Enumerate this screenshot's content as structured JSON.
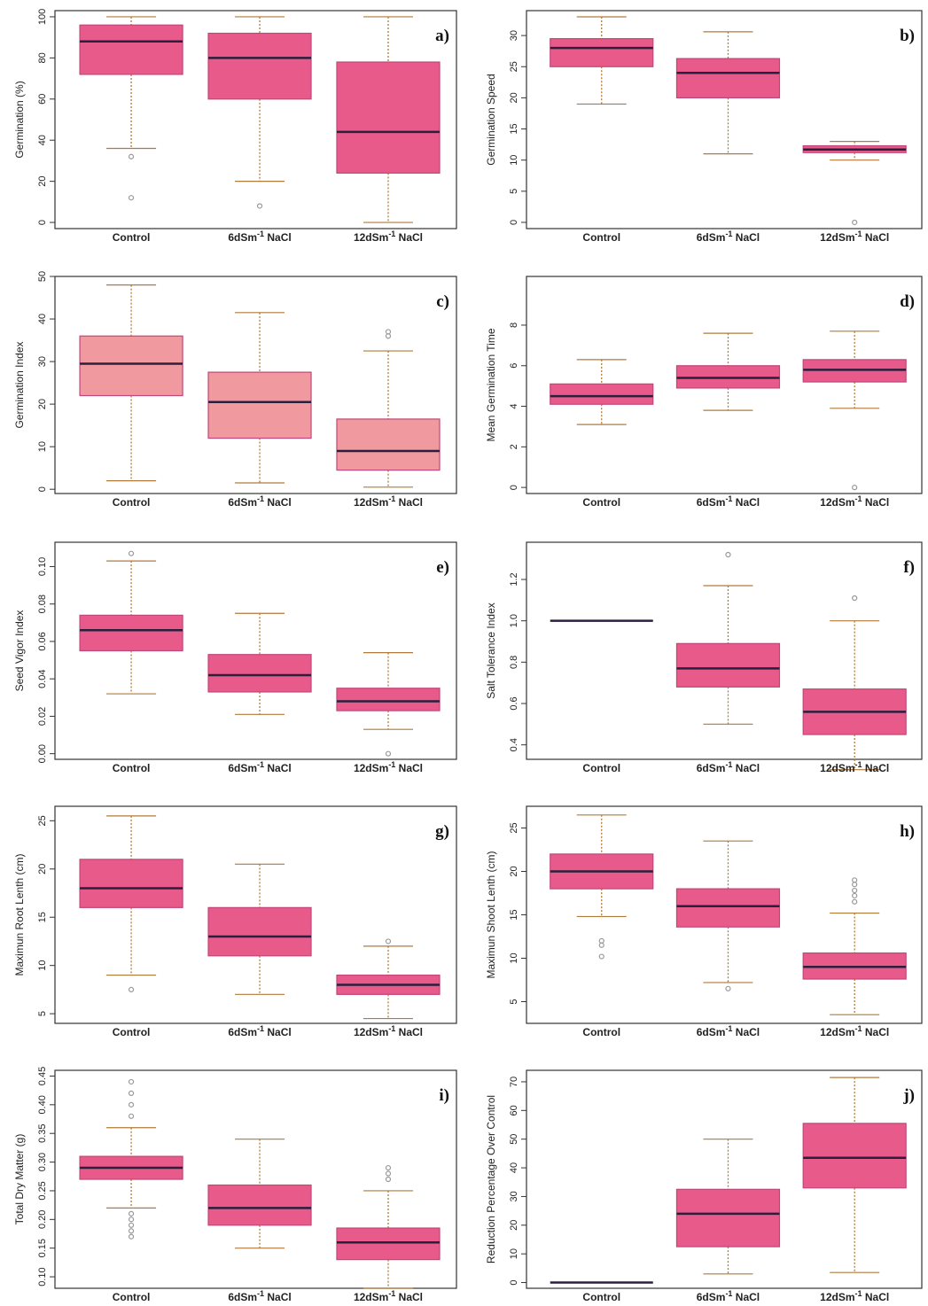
{
  "colors": {
    "box_fill": "#e75a8a",
    "box_fill_light": "#f09a9f",
    "box_border": "#c0477a",
    "median": "#2a1f3d",
    "whisker": "#b07a3a",
    "outlier": "#999999",
    "frame": "#333333"
  },
  "chart_data": [
    {
      "type": "box",
      "panel": "a)",
      "ylabel": "Germination (%)",
      "categories": [
        "Control",
        "6dSm-1 NaCl",
        "12dSm-1 NaCl"
      ],
      "yticks": [
        "0",
        "20",
        "40",
        "60",
        "80",
        "100"
      ],
      "ylim": [
        -3,
        103
      ],
      "boxes": [
        {
          "min": 36,
          "q1": 72,
          "median": 88,
          "q3": 96,
          "max": 100,
          "outliers": [
            32,
            12
          ]
        },
        {
          "min": 20,
          "q1": 60,
          "median": 80,
          "q3": 92,
          "max": 100,
          "outliers": [
            8
          ]
        },
        {
          "min": 0,
          "q1": 24,
          "median": 44,
          "q3": 78,
          "max": 100,
          "outliers": []
        }
      ]
    },
    {
      "type": "box",
      "panel": "b)",
      "ylabel": "Germination Speed",
      "categories": [
        "Control",
        "6dSm-1 NaCl",
        "12dSm-1 NaCl"
      ],
      "yticks": [
        "0",
        "5",
        "10",
        "15",
        "20",
        "25",
        "30"
      ],
      "ylim": [
        -1,
        34
      ],
      "boxes": [
        {
          "min": 19,
          "q1": 25,
          "median": 28,
          "q3": 29.5,
          "max": 33,
          "outliers": []
        },
        {
          "min": 11,
          "q1": 20,
          "median": 24,
          "q3": 26.3,
          "max": 30.6,
          "outliers": []
        },
        {
          "min": 10,
          "q1": 11.2,
          "median": 11.7,
          "q3": 12.3,
          "max": 13,
          "outliers": [
            0
          ]
        }
      ]
    },
    {
      "type": "box",
      "panel": "c)",
      "ylabel": "Germination Index",
      "categories": [
        "Control",
        "6dSm-1 NaCl",
        "12dSm-1 NaCl"
      ],
      "yticks": [
        "0",
        "10",
        "20",
        "30",
        "40",
        "50"
      ],
      "ylim": [
        -1,
        50
      ],
      "boxes": [
        {
          "min": 2,
          "q1": 22,
          "median": 29.5,
          "q3": 36,
          "max": 48,
          "outliers": []
        },
        {
          "min": 1.5,
          "q1": 12,
          "median": 20.5,
          "q3": 27.5,
          "max": 41.5,
          "outliers": []
        },
        {
          "min": 0.5,
          "q1": 4.5,
          "median": 9,
          "q3": 16.5,
          "max": 32.5,
          "outliers": [
            36,
            37
          ]
        }
      ]
    },
    {
      "type": "box",
      "panel": "d)",
      "ylabel": "Mean Germination Time",
      "categories": [
        "Control",
        "6dSm-1 NaCl",
        "12dSm-1 NaCl"
      ],
      "yticks": [
        "0",
        "2",
        "4",
        "6",
        "8"
      ],
      "ylim": [
        -0.3,
        10.4
      ],
      "boxes": [
        {
          "min": 3.1,
          "q1": 4.1,
          "median": 4.5,
          "q3": 5.1,
          "max": 6.3,
          "outliers": []
        },
        {
          "min": 3.8,
          "q1": 4.9,
          "median": 5.4,
          "q3": 6.0,
          "max": 7.6,
          "outliers": []
        },
        {
          "min": 3.9,
          "q1": 5.2,
          "median": 5.8,
          "q3": 6.3,
          "max": 7.7,
          "outliers": [
            0
          ]
        }
      ]
    },
    {
      "type": "box",
      "panel": "e)",
      "ylabel": "Seed Vigor Index",
      "categories": [
        "Control",
        "6dSm-1 NaCl",
        "12dSm-1 NaCl"
      ],
      "yticks": [
        "0.00",
        "0.02",
        "0.04",
        "0.06",
        "0.08",
        "0.10"
      ],
      "ylim": [
        -0.003,
        0.113
      ],
      "boxes": [
        {
          "min": 0.032,
          "q1": 0.055,
          "median": 0.066,
          "q3": 0.074,
          "max": 0.103,
          "outliers": [
            0.107
          ]
        },
        {
          "min": 0.021,
          "q1": 0.033,
          "median": 0.042,
          "q3": 0.053,
          "max": 0.075,
          "outliers": []
        },
        {
          "min": 0.013,
          "q1": 0.023,
          "median": 0.028,
          "q3": 0.035,
          "max": 0.054,
          "outliers": [
            0.0
          ]
        }
      ]
    },
    {
      "type": "box",
      "panel": "f)",
      "ylabel": "Salt Tolerance Index",
      "categories": [
        "Control",
        "6dSm-1 NaCl",
        "12dSm-1 NaCl"
      ],
      "yticks": [
        "0.4",
        "0.6",
        "0.8",
        "1.0",
        "1.2"
      ],
      "ylim": [
        0.33,
        1.38
      ],
      "boxes": [
        {
          "min": 1.0,
          "q1": 1.0,
          "median": 1.0,
          "q3": 1.0,
          "max": 1.0,
          "outliers": []
        },
        {
          "min": 0.5,
          "q1": 0.68,
          "median": 0.77,
          "q3": 0.89,
          "max": 1.17,
          "outliers": [
            1.32
          ]
        },
        {
          "min": 0.28,
          "q1": 0.45,
          "median": 0.56,
          "q3": 0.67,
          "max": 1.0,
          "outliers": [
            1.11
          ]
        }
      ]
    },
    {
      "type": "box",
      "panel": "g)",
      "ylabel": "Maximun Root Lenth (cm)",
      "categories": [
        "Control",
        "6dSm-1 NaCl",
        "12dSm-1 NaCl"
      ],
      "yticks": [
        "5",
        "10",
        "15",
        "20",
        "25"
      ],
      "ylim": [
        4,
        26.5
      ],
      "boxes": [
        {
          "min": 9,
          "q1": 16,
          "median": 18,
          "q3": 21,
          "max": 25.5,
          "outliers": [
            7.5
          ]
        },
        {
          "min": 7,
          "q1": 11,
          "median": 13,
          "q3": 16,
          "max": 20.5,
          "outliers": []
        },
        {
          "min": 4.5,
          "q1": 7,
          "median": 8,
          "q3": 9,
          "max": 12,
          "outliers": [
            12.5
          ]
        }
      ]
    },
    {
      "type": "box",
      "panel": "h)",
      "ylabel": "Maximun Shoot Lenth (cm)",
      "categories": [
        "Control",
        "6dSm-1 NaCl",
        "12dSm-1 NaCl"
      ],
      "yticks": [
        "5",
        "10",
        "15",
        "20",
        "25"
      ],
      "ylim": [
        2.5,
        27.5
      ],
      "boxes": [
        {
          "min": 14.8,
          "q1": 18,
          "median": 20,
          "q3": 22,
          "max": 26.5,
          "outliers": [
            12,
            11.5,
            10.2
          ]
        },
        {
          "min": 7.2,
          "q1": 13.6,
          "median": 16,
          "q3": 18,
          "max": 23.5,
          "outliers": [
            6.5
          ]
        },
        {
          "min": 3.5,
          "q1": 7.6,
          "median": 9,
          "q3": 10.6,
          "max": 15.2,
          "outliers": [
            16.5,
            17.2,
            17.8,
            18.5,
            19
          ]
        }
      ]
    },
    {
      "type": "box",
      "panel": "i)",
      "ylabel": "Total Dry Matter (g)",
      "categories": [
        "Control",
        "6dSm-1 NaCl",
        "12dSm-1 NaCl"
      ],
      "yticks": [
        "0.10",
        "0.15",
        "0.20",
        "0.25",
        "0.30",
        "0.35",
        "0.40",
        "0.45"
      ],
      "ylim": [
        0.08,
        0.46
      ],
      "boxes": [
        {
          "min": 0.22,
          "q1": 0.27,
          "median": 0.29,
          "q3": 0.31,
          "max": 0.36,
          "outliers": [
            0.38,
            0.4,
            0.42,
            0.44,
            0.21,
            0.2,
            0.19,
            0.18,
            0.17
          ]
        },
        {
          "min": 0.15,
          "q1": 0.19,
          "median": 0.22,
          "q3": 0.26,
          "max": 0.34,
          "outliers": []
        },
        {
          "min": 0.08,
          "q1": 0.13,
          "median": 0.16,
          "q3": 0.185,
          "max": 0.25,
          "outliers": [
            0.27,
            0.28,
            0.29
          ]
        }
      ]
    },
    {
      "type": "box",
      "panel": "j)",
      "ylabel": "Reduction Percentage Over Control",
      "categories": [
        "Control",
        "6dSm-1 NaCl",
        "12dSm-1 NaCl"
      ],
      "yticks": [
        "0",
        "10",
        "20",
        "30",
        "40",
        "50",
        "60",
        "70"
      ],
      "ylim": [
        -2,
        74
      ],
      "boxes": [
        {
          "min": 0,
          "q1": 0,
          "median": 0,
          "q3": 0,
          "max": 0,
          "outliers": []
        },
        {
          "min": 3,
          "q1": 12.5,
          "median": 24,
          "q3": 32.5,
          "max": 50,
          "outliers": []
        },
        {
          "min": 3.5,
          "q1": 33,
          "median": 43.5,
          "q3": 55.5,
          "max": 71.5,
          "outliers": []
        }
      ]
    }
  ]
}
